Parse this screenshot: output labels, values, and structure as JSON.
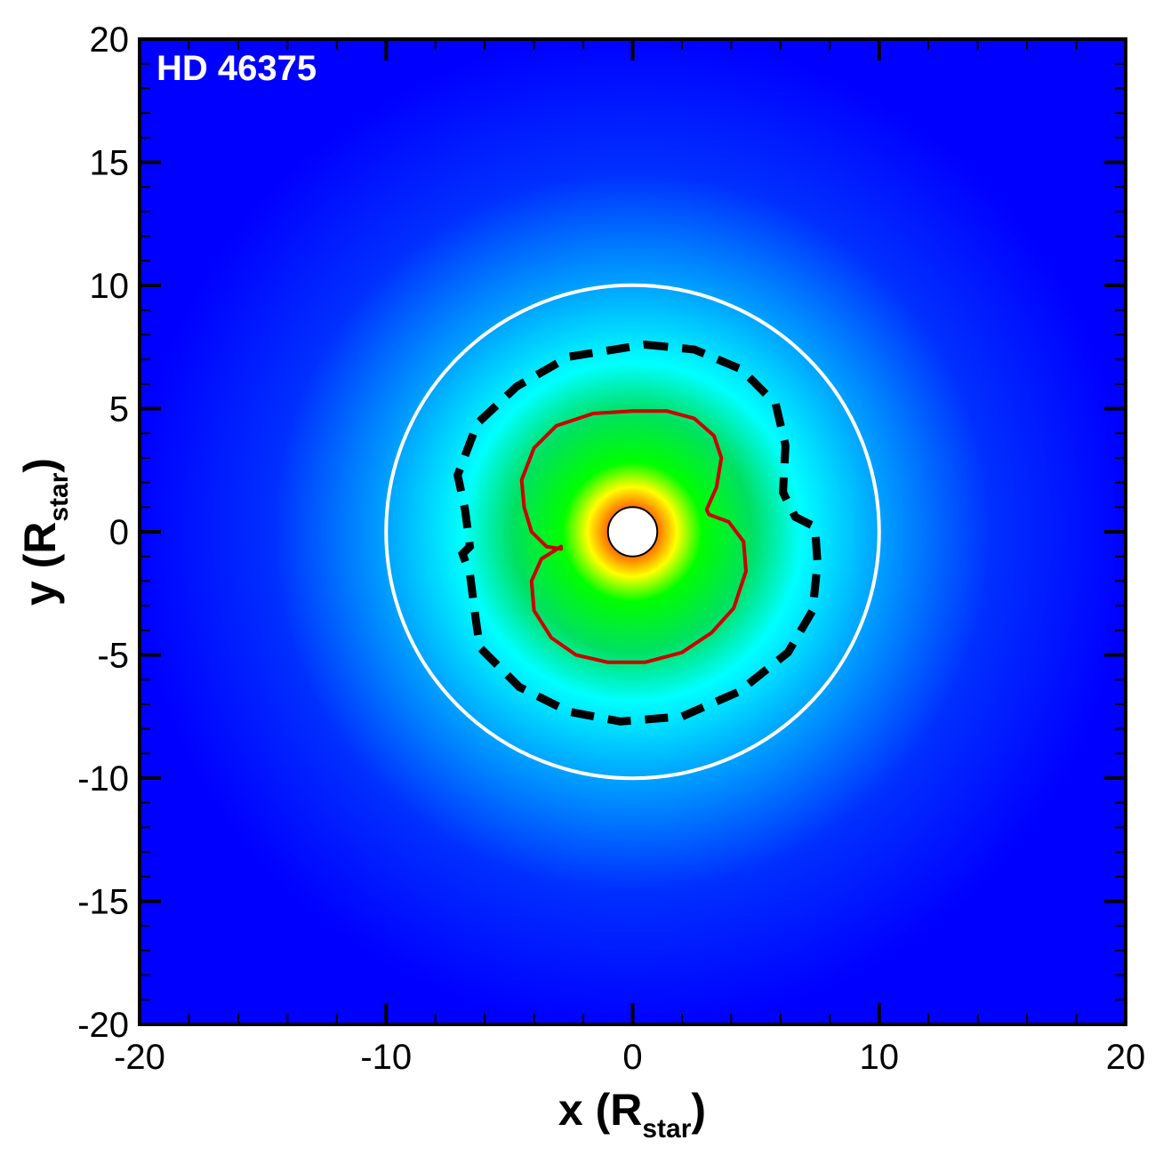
{
  "chart_data": {
    "type": "heatmap",
    "label": "HD 46375",
    "xlabel": {
      "main": "x (R",
      "sub": "star",
      "close": ")"
    },
    "ylabel": {
      "main": "y (R",
      "sub": "star",
      "close": ")"
    },
    "xlim": [
      -20,
      20
    ],
    "ylim": [
      -20,
      20
    ],
    "major_ticks": [
      -20,
      -10,
      0,
      10,
      20
    ],
    "y_major_ticks": [
      -20,
      -15,
      -10,
      -5,
      0,
      5,
      10,
      15,
      20
    ],
    "x_tick_labels": [
      "-20",
      "-10",
      "0",
      "10",
      "20"
    ],
    "y_tick_labels": [
      "-20",
      "-15",
      "-10",
      "-5",
      "0",
      "5",
      "10",
      "15",
      "20"
    ],
    "minor_tick_step": 2,
    "y_minor_tick_step": 1,
    "colormap": [
      "#0000ff",
      "#00a0ff",
      "#00ffff",
      "#00e060",
      "#00ff00",
      "#ffff00",
      "#ff8000",
      "#ff0000"
    ],
    "inner_hole_radius": 1.0,
    "circle": {
      "radius": 10,
      "color": "#ffffff",
      "style": "solid"
    },
    "dashed_contour": {
      "color": "#000000",
      "style": "dashed",
      "points": [
        [
          0.5,
          7.6
        ],
        [
          2.5,
          7.4
        ],
        [
          4.4,
          6.6
        ],
        [
          5.8,
          5.2
        ],
        [
          6.2,
          3.5
        ],
        [
          6.1,
          1.6
        ],
        [
          6.6,
          0.6
        ],
        [
          7.4,
          0.2
        ],
        [
          7.5,
          -1.3
        ],
        [
          7.3,
          -3.2
        ],
        [
          6.3,
          -4.9
        ],
        [
          4.3,
          -6.5
        ],
        [
          2.0,
          -7.5
        ],
        [
          -0.5,
          -7.7
        ],
        [
          -2.6,
          -7.3
        ],
        [
          -4.6,
          -6.3
        ],
        [
          -6.2,
          -4.7
        ],
        [
          -6.4,
          -3.3
        ],
        [
          -6.6,
          -1.7
        ],
        [
          -6.9,
          -0.9
        ],
        [
          -6.6,
          -0.6
        ],
        [
          -6.8,
          0.9
        ],
        [
          -7.1,
          2.3
        ],
        [
          -6.3,
          4.4
        ],
        [
          -4.7,
          5.9
        ],
        [
          -2.6,
          7.1
        ],
        [
          0.5,
          7.6
        ]
      ]
    },
    "red_contour": {
      "color": "#cc0000",
      "style": "solid",
      "points": [
        [
          0.0,
          4.9
        ],
        [
          1.4,
          4.9
        ],
        [
          2.5,
          4.6
        ],
        [
          3.3,
          3.9
        ],
        [
          3.6,
          3.0
        ],
        [
          3.4,
          1.8
        ],
        [
          3.0,
          0.9
        ],
        [
          3.1,
          0.7
        ],
        [
          3.9,
          0.4
        ],
        [
          4.5,
          -0.4
        ],
        [
          4.6,
          -1.6
        ],
        [
          4.1,
          -3.1
        ],
        [
          3.2,
          -4.1
        ],
        [
          2.0,
          -4.9
        ],
        [
          0.5,
          -5.3
        ],
        [
          -1.0,
          -5.3
        ],
        [
          -2.3,
          -5.0
        ],
        [
          -3.3,
          -4.3
        ],
        [
          -4.0,
          -3.2
        ],
        [
          -4.1,
          -2.0
        ],
        [
          -3.7,
          -1.1
        ],
        [
          -2.9,
          -0.6
        ],
        [
          -2.9,
          -0.7
        ],
        [
          -3.5,
          -0.6
        ],
        [
          -4.1,
          0.0
        ],
        [
          -4.4,
          1.0
        ],
        [
          -4.5,
          2.1
        ],
        [
          -4.0,
          3.4
        ],
        [
          -3.1,
          4.3
        ],
        [
          -1.6,
          4.8
        ],
        [
          0.0,
          4.9
        ]
      ]
    }
  }
}
